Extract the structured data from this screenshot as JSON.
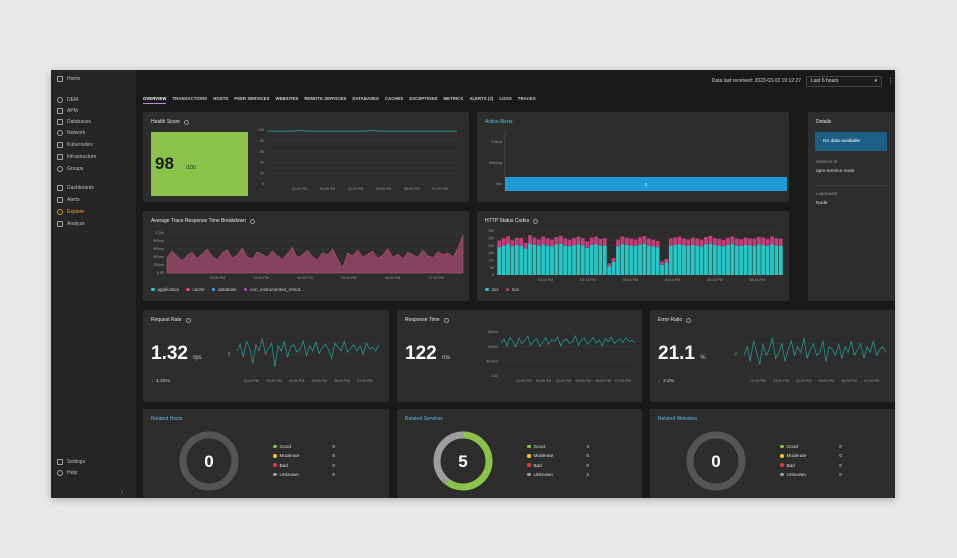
{
  "sidebar": {
    "items": [
      {
        "label": "Home",
        "icon": "home-icon"
      },
      {
        "label": "DEM",
        "icon": "monitor-icon"
      },
      {
        "label": "APM",
        "icon": "apm-icon"
      },
      {
        "label": "Databases",
        "icon": "database-icon"
      },
      {
        "label": "Network",
        "icon": "network-icon"
      },
      {
        "label": "Kubernetes",
        "icon": "kubernetes-icon"
      },
      {
        "label": "Infrastructure",
        "icon": "infrastructure-icon"
      },
      {
        "label": "Groups",
        "icon": "groups-icon"
      },
      {
        "label": "Dashboards",
        "icon": "dashboards-icon"
      },
      {
        "label": "Alerts",
        "icon": "alerts-icon"
      },
      {
        "label": "Explore",
        "icon": "explore-icon"
      },
      {
        "label": "Analyze",
        "icon": "analyze-icon"
      },
      {
        "label": "Settings",
        "icon": "gear-icon"
      },
      {
        "label": "Help",
        "icon": "help-icon"
      }
    ],
    "active": "Explore",
    "collapse_glyph": "‹"
  },
  "topbar": {
    "data_received": "Data last received: 2023-03-03 19:12:27",
    "time_range": "Last 6 hours",
    "kebab": "⋮"
  },
  "tabs": [
    "OVERVIEW",
    "TRANSACTIONS",
    "HOSTS",
    "PEER SERVICES",
    "WEBSITES",
    "REMOTE SERVICES",
    "DATABASES",
    "CACHES",
    "EXCEPTIONS",
    "METRICS",
    "ALERTS (2)",
    "LOGS",
    "TRACES"
  ],
  "active_tab": "OVERVIEW",
  "health": {
    "title": "Health Score",
    "value": "98",
    "max": "/100"
  },
  "active_alerts": {
    "title": "Active Alerts"
  },
  "details": {
    "title": "Details",
    "no_data": "No data available",
    "service_id_label": "SERVICE ID",
    "service_id": "apm-service-node",
    "language_label": "LANGUAGE",
    "language": "Node"
  },
  "trace": {
    "title": "Average Trace Response Time Breakdown"
  },
  "http": {
    "title": "HTTP Status Codes"
  },
  "request_rate": {
    "title": "Request Rate",
    "value": "1.32",
    "unit": "rps",
    "delta": "1.31%",
    "delta_arrow": "↓"
  },
  "response_time": {
    "title": "Response Time",
    "value": "122",
    "unit": "ms"
  },
  "error_ratio": {
    "title": "Error Ratio",
    "value": "21.1",
    "unit": "%",
    "delta": "2.2%",
    "delta_arrow": "↓"
  },
  "related_hosts": {
    "title": "Related Hosts",
    "total": "0",
    "rows": [
      {
        "label": "Good",
        "count": "0"
      },
      {
        "label": "Moderate",
        "count": "0"
      },
      {
        "label": "Bad",
        "count": "0"
      },
      {
        "label": "Unknown",
        "count": "0"
      }
    ]
  },
  "related_services": {
    "title": "Related Services",
    "total": "5",
    "rows": [
      {
        "label": "Good",
        "count": "3"
      },
      {
        "label": "Moderate",
        "count": "0"
      },
      {
        "label": "Bad",
        "count": "0"
      },
      {
        "label": "Unknown",
        "count": "2"
      }
    ]
  },
  "related_websites": {
    "title": "Related Websites",
    "total": "0",
    "rows": [
      {
        "label": "Good",
        "count": "0"
      },
      {
        "label": "Moderate",
        "count": "0"
      },
      {
        "label": "Bad",
        "count": "0"
      },
      {
        "label": "Unknown",
        "count": "0"
      }
    ]
  },
  "status_colors": {
    "good": "#8bc34a",
    "moderate": "#f0c419",
    "bad": "#e53935",
    "unknown": "#9e9e9e"
  },
  "chart_data": [
    {
      "id": "health",
      "type": "line",
      "title": "Health Score",
      "y_ticks": [
        "100",
        "80",
        "60",
        "40",
        "20",
        "0"
      ],
      "ylim": [
        0,
        100
      ],
      "x_ticks": [
        "02:00 PM",
        "03:00 PM",
        "04:00 PM",
        "05:00 PM",
        "06:00 PM",
        "07:00 PM"
      ],
      "series": [
        {
          "name": "health",
          "color": "#26a69a",
          "values": [
            98,
            98,
            98,
            98,
            98,
            99,
            98,
            98,
            98,
            98,
            98,
            98,
            98,
            98,
            98,
            98,
            99,
            98,
            98,
            98,
            98,
            98,
            98,
            98,
            98,
            98,
            98,
            98,
            98,
            98
          ]
        }
      ]
    },
    {
      "id": "alerts",
      "type": "bar",
      "title": "Active Alerts",
      "orientation": "horizontal",
      "categories": [
        "Critical",
        "Warning",
        "Info"
      ],
      "values": [
        0,
        0,
        2
      ],
      "color": "#1e9bd7"
    },
    {
      "id": "trace",
      "type": "area",
      "title": "Average Trace Response Time Breakdown",
      "y_ticks": [
        "1.25s",
        "800ms",
        "600ms",
        "400ms",
        "200ms",
        "0.00"
      ],
      "x_ticks": [
        "02:00 PM",
        "03:00 PM",
        "04:00 PM",
        "05:00 PM",
        "06:00 PM",
        "07:00 PM"
      ],
      "legend": [
        {
          "label": "application",
          "color": "#26c6da"
        },
        {
          "label": "cache",
          "color": "#ec407a"
        },
        {
          "label": "database",
          "color": "#42a5f5"
        },
        {
          "label": "non_instrumented_remot...",
          "color": "#ab47bc"
        }
      ],
      "series": [
        {
          "name": "non_instrumented_remot...",
          "color": "#a34a6e",
          "values": [
            0.38,
            0.55,
            0.42,
            0.31,
            0.44,
            0.52,
            0.36,
            0.48,
            0.6,
            0.41,
            0.33,
            0.5,
            0.58,
            0.37,
            0.45,
            0.62,
            0.4,
            0.35,
            0.53,
            0.47,
            0.39,
            0.56,
            0.43,
            0.34,
            0.49,
            0.64,
            0.38,
            0.46,
            0.57,
            0.41,
            0.32,
            0.51,
            0.45,
            0.6,
            0.36,
            0.12,
            0.5,
            0.43,
            0.58,
            0.4,
            0.47,
            0.55,
            0.37,
            0.44,
            0.61,
            0.39,
            0.48,
            0.35,
            0.52,
            0.46,
            0.4,
            0.57,
            0.43,
            0.38,
            0.54,
            0.45,
            0.5,
            0.41,
            0.62,
            0.95
          ]
        }
      ]
    },
    {
      "id": "http",
      "type": "bar",
      "title": "HTTP Status Codes",
      "stacked": true,
      "y_ticks": [
        "300",
        "250",
        "200",
        "150",
        "100",
        "50",
        "0"
      ],
      "ylim": [
        0,
        300
      ],
      "x_ticks": [
        "02:14 PM",
        "02:14 PM",
        "03:14 PM",
        "04:14 PM",
        "05:14 PM",
        "06:14 PM"
      ],
      "legend": [
        {
          "label": "2xx",
          "color": "#26c6c6"
        },
        {
          "label": "5xx",
          "color": "#c2407a"
        }
      ],
      "series": [
        {
          "name": "2xx",
          "values": [
            190,
            200,
            210,
            195,
            205,
            200,
            180,
            215,
            205,
            198,
            210,
            202,
            195,
            208,
            212,
            200,
            196,
            204,
            210,
            200,
            185,
            205,
            208,
            200,
            202,
            60,
            90,
            195,
            210,
            205,
            200,
            198,
            207,
            212,
            200,
            196,
            190,
            70,
            85,
            200,
            206,
            210,
            202,
            198,
            205,
            200,
            196,
            208,
            212,
            204,
            200,
            195,
            205,
            210,
            200,
            198,
            206,
            202,
            200,
            208,
            205,
            198,
            210,
            202,
            200
          ]
        },
        {
          "name": "5xx",
          "values": [
            45,
            50,
            55,
            42,
            48,
            52,
            40,
            56,
            50,
            44,
            53,
            47,
            46,
            51,
            55,
            49,
            45,
            48,
            52,
            50,
            44,
            50,
            54,
            46,
            48,
            20,
            25,
            46,
            52,
            50,
            48,
            44,
            50,
            54,
            49,
            45,
            42,
            22,
            24,
            48,
            50,
            53,
            47,
            45,
            50,
            49,
            46,
            51,
            55,
            48,
            47,
            45,
            49,
            53,
            48,
            46,
            50,
            47,
            48,
            51,
            50,
            46,
            52,
            48,
            47
          ]
        }
      ]
    },
    {
      "id": "request_rate",
      "type": "line",
      "title": "Request Rate",
      "ylabel": "rps",
      "x_ticks": [
        "02:00 PM",
        "03:00 PM",
        "04:00 PM",
        "05:00 PM",
        "06:00 PM",
        "07:00 PM"
      ],
      "series": [
        {
          "name": "rps",
          "color": "#26a69a",
          "values": [
            1.3,
            1.4,
            1.2,
            1.45,
            1.35,
            1.1,
            1.4,
            1.3,
            1.5,
            1.25,
            1.35,
            1.42,
            1.05,
            1.38,
            1.3,
            1.45,
            1.2,
            1.36,
            1.4,
            1.28,
            1.33,
            1.46,
            1.22,
            1.38,
            1.3,
            1.44,
            1.26,
            1.35,
            1.4,
            1.32,
            1.18,
            1.42,
            1.36,
            1.3,
            1.45,
            1.28,
            1.34,
            1.4,
            1.3,
            1.38,
            1.25,
            1.42,
            1.33,
            1.36,
            1.3,
            1.4
          ]
        }
      ]
    },
    {
      "id": "response_time",
      "type": "line",
      "title": "Response Time",
      "y_ticks": [
        "150ms",
        "100ms",
        "50.0ms",
        "0.00"
      ],
      "ylim": [
        0,
        160
      ],
      "x_ticks": [
        "02:00 PM",
        "03:00 PM",
        "04:00 PM",
        "05:00 PM",
        "06:00 PM",
        "07:00 PM"
      ],
      "series": [
        {
          "name": "ms",
          "color": "#26a69a",
          "values": [
            120,
            135,
            110,
            140,
            125,
            105,
            138,
            118,
            130,
            145,
            112,
            128,
            136,
            108,
            122,
            140,
            115,
            132,
            126,
            142,
            110,
            128,
            134,
            118,
            124,
            146,
            112,
            130,
            138,
            116,
            126,
            140,
            120,
            132,
            110,
            136,
            124,
            142,
            118,
            128,
            134,
            122,
            140,
            126,
            130,
            120
          ]
        }
      ]
    },
    {
      "id": "error_ratio",
      "type": "line",
      "title": "Error Ratio",
      "ylabel": "%",
      "x_ticks": [
        "02:00 PM",
        "03:00 PM",
        "04:00 PM",
        "05:00 PM",
        "06:00 PM",
        "07:00 PM"
      ],
      "series": [
        {
          "name": "%",
          "color": "#26a69a",
          "values": [
            21,
            24,
            19,
            26,
            22,
            18,
            25,
            21,
            23,
            27,
            20,
            22,
            25,
            19,
            23,
            26,
            21,
            24,
            22,
            27,
            20,
            23,
            25,
            21,
            22,
            26,
            19,
            24,
            23,
            21,
            25,
            20,
            24,
            22,
            26,
            21,
            23,
            25,
            20,
            24,
            22,
            26,
            21,
            23,
            24,
            22
          ]
        }
      ]
    }
  ]
}
